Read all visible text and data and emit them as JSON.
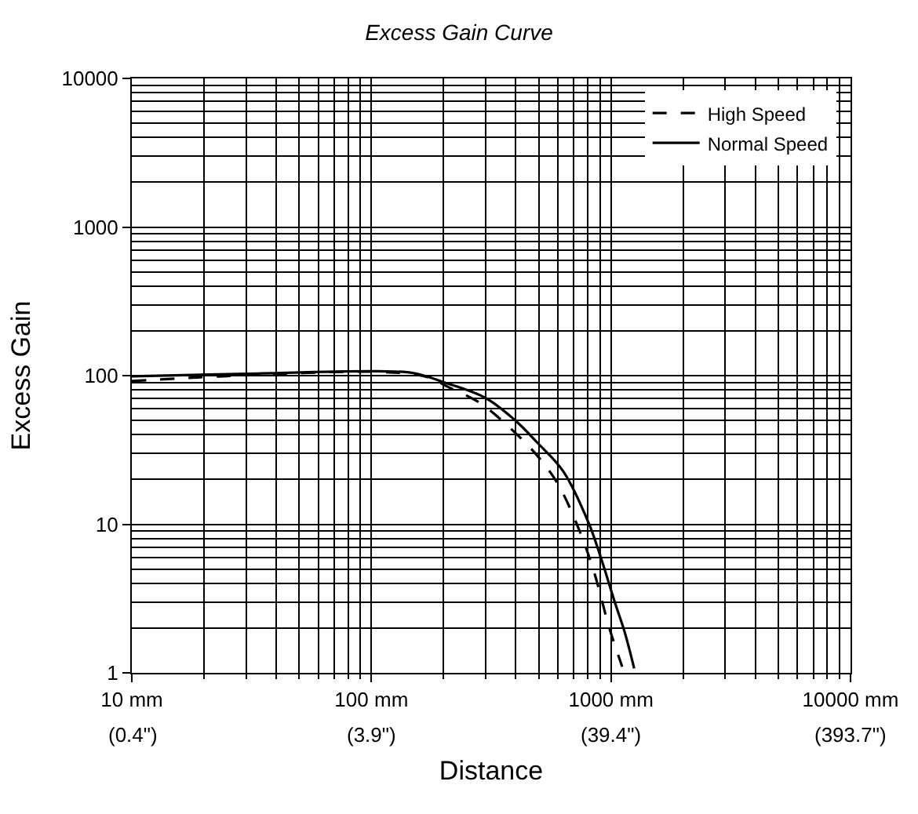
{
  "chart_data": {
    "type": "line",
    "title": "Excess Gain Curve",
    "xlabel": "Distance",
    "ylabel": "Excess Gain",
    "log": "xy",
    "grid": true,
    "legend": "top right",
    "marker": "none",
    "xlim": [
      10,
      10000
    ],
    "ylim": [
      1,
      10000
    ],
    "xticks": [
      {
        "value": 10,
        "label": "10 mm"
      },
      {
        "value": 100,
        "label": "100 mm"
      },
      {
        "value": 1000,
        "label": "1000 mm"
      },
      {
        "value": 10000,
        "label": "10000 mm"
      }
    ],
    "annotations": [
      "(0.4\")",
      "(3.9\")",
      "(39.4\")",
      "(393.7\")"
    ],
    "yticks": [
      1,
      10,
      100,
      1000,
      10000
    ],
    "series": [
      {
        "name": "High Speed",
        "color": "#000000",
        "line_style": "dashed",
        "x": [
          10,
          24,
          106,
          166,
          212,
          286,
          365,
          492,
          600,
          732,
          849,
          985,
          1114
        ],
        "values": [
          92,
          99,
          106,
          99,
          83,
          65,
          47,
          29,
          18.7,
          9.4,
          4.8,
          2.0,
          1.1
        ]
      },
      {
        "name": "Normal Speed",
        "color": "#000000",
        "line_style": "solid",
        "x": [
          10,
          30,
          106,
          150,
          202,
          300,
          404,
          492,
          631,
          807,
          914,
          1035,
          1143,
          1250
        ],
        "values": [
          99,
          103,
          107,
          104,
          90,
          70.7,
          49,
          35.5,
          22.8,
          10.2,
          5.75,
          3.03,
          1.86,
          1.07
        ]
      }
    ]
  }
}
